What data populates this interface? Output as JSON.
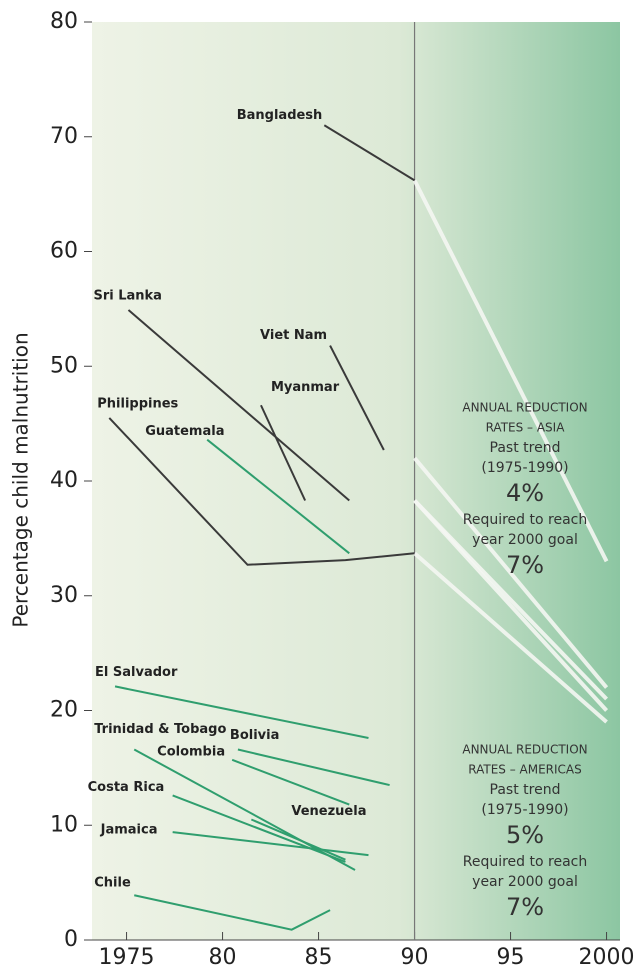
{
  "chart_data": {
    "type": "line",
    "y_label": "Percentage child malnutrition",
    "xlim": [
      1973.2,
      2000.7
    ],
    "ylim": [
      0,
      80
    ],
    "xticks": [
      1975,
      {
        "value": 1980,
        "label": "80"
      },
      {
        "value": 1985,
        "label": "85"
      },
      {
        "value": 1990,
        "label": "90"
      },
      {
        "value": 1995,
        "label": "95"
      },
      2000
    ],
    "yticks": [
      0,
      10,
      20,
      30,
      40,
      50,
      60,
      70,
      80
    ],
    "reference_line_x": 1990,
    "series": [
      {
        "name": "Bangladesh",
        "color": "#3a3a3a",
        "x": [
          1985.3,
          1990
        ],
        "values": [
          71,
          66.2
        ],
        "projection": {
          "x": [
            1990,
            2000
          ],
          "values": [
            66.2,
            33
          ]
        }
      },
      {
        "name": "Sri Lanka",
        "color": "#3a3a3a",
        "x": [
          1975.1,
          1986.6
        ],
        "values": [
          54.9,
          38.3
        ],
        "projection": {
          "x": [
            1990,
            2000
          ],
          "values": [
            38.3,
            20
          ]
        }
      },
      {
        "name": "Viet Nam",
        "color": "#3a3a3a",
        "x": [
          1985.6,
          1988.4
        ],
        "values": [
          51.8,
          42.7
        ],
        "projection": {
          "x": [
            1990,
            2000
          ],
          "values": [
            42,
            22
          ]
        }
      },
      {
        "name": "Myanmar",
        "color": "#3a3a3a",
        "x": [
          1982,
          1984.3
        ],
        "values": [
          46.6,
          38.3
        ],
        "projection": {
          "x": [
            1990,
            2000
          ],
          "values": [
            38.3,
            21
          ]
        }
      },
      {
        "name": "Philippines",
        "color": "#3a3a3a",
        "x": [
          1974.1,
          1981.3,
          1986.4,
          1990
        ],
        "values": [
          45.5,
          32.7,
          33.1,
          33.7
        ],
        "projection": {
          "x": [
            1990,
            2000
          ],
          "values": [
            33.7,
            19
          ]
        }
      },
      {
        "name": "Guatemala",
        "color": "#2f9e6e",
        "x": [
          1979.2,
          1986.6
        ],
        "values": [
          43.6,
          33.7
        ]
      },
      {
        "name": "El Salvador",
        "color": "#2f9e6e",
        "x": [
          1974.4,
          1987.6
        ],
        "values": [
          22.1,
          17.6
        ]
      },
      {
        "name": "Trinidad & Tobago",
        "color": "#2f9e6e",
        "x": [
          1975.4,
          1986.9
        ],
        "values": [
          16.6,
          6.1
        ]
      },
      {
        "name": "Bolivia",
        "color": "#2f9e6e",
        "x": [
          1980.8,
          1988.7
        ],
        "values": [
          16.6,
          13.5
        ]
      },
      {
        "name": "Colombia",
        "color": "#2f9e6e",
        "x": [
          1980.5,
          1986.6
        ],
        "values": [
          15.7,
          11.8
        ]
      },
      {
        "name": "Costa Rica",
        "color": "#2f9e6e",
        "x": [
          1977.4,
          1986.4
        ],
        "values": [
          12.6,
          6.8
        ]
      },
      {
        "name": "Venezuela",
        "color": "#2f9e6e",
        "x": [
          1981.5,
          1986.4
        ],
        "values": [
          10.5,
          7
        ]
      },
      {
        "name": "Jamaica",
        "color": "#2f9e6e",
        "x": [
          1977.4,
          1987.6
        ],
        "values": [
          9.4,
          7.4
        ]
      },
      {
        "name": "Chile",
        "color": "#2f9e6e",
        "x": [
          1975.4,
          1983.6,
          1985.6
        ],
        "values": [
          3.9,
          0.9,
          2.6
        ]
      }
    ],
    "annotations": [
      {
        "lines": [
          "ANNUAL REDUCTION",
          "RATES – ASIA",
          "Past trend",
          "(1975-1990)",
          "4%",
          "Required to reach",
          "year 2000 goal",
          "7%"
        ]
      },
      {
        "lines": [
          "ANNUAL REDUCTION",
          "RATES – AMERICAS",
          "Past trend",
          "(1975-1990)",
          "5%",
          "Required to reach",
          "year 2000 goal",
          "7%"
        ]
      }
    ]
  }
}
